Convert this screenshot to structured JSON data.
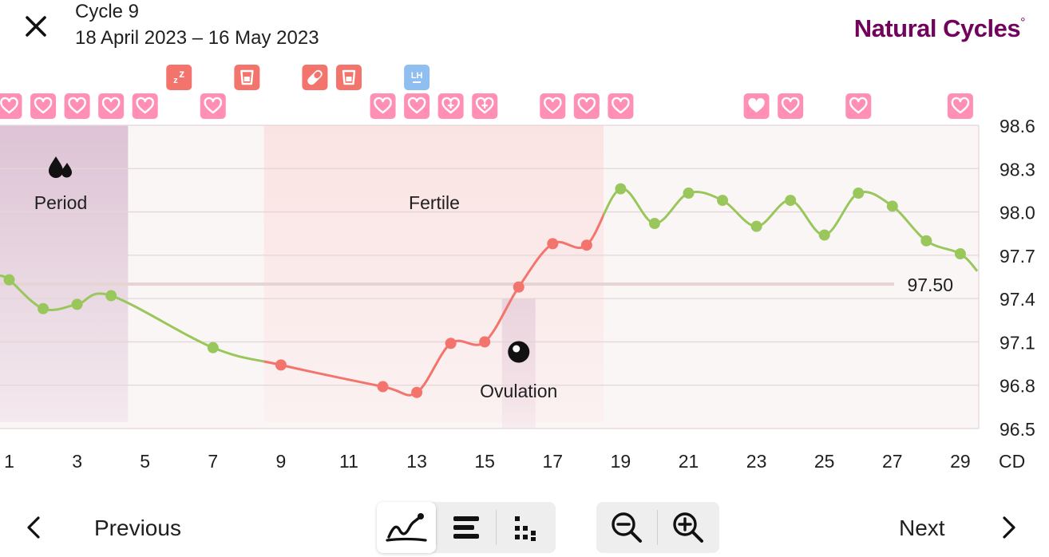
{
  "header": {
    "close_icon": "close-icon",
    "cycle_title": "Cycle 9",
    "cycle_dates": "18 April 2023 – 16 May 2023",
    "brand": "Natural Cycles",
    "brand_mark": "°"
  },
  "chart_data": {
    "type": "line",
    "x": [
      1,
      2,
      3,
      4,
      7,
      9,
      12,
      13,
      14,
      15,
      16,
      17,
      18,
      19,
      20,
      21,
      22,
      23,
      24,
      25,
      26,
      27,
      28,
      29
    ],
    "values": [
      97.53,
      97.33,
      97.36,
      97.42,
      97.06,
      96.94,
      96.79,
      96.75,
      97.09,
      97.1,
      97.48,
      97.78,
      97.77,
      98.16,
      97.92,
      98.13,
      98.08,
      97.9,
      98.08,
      97.84,
      98.13,
      98.04,
      97.8,
      97.71
    ],
    "xlim": [
      0.7,
      29.5
    ],
    "ylim": [
      96.5,
      98.6
    ],
    "yticks": [
      "96.5",
      "96.8",
      "97.1",
      "97.4",
      "97.7",
      "98.0",
      "98.3",
      "98.6"
    ],
    "xticks": [
      "1",
      "3",
      "5",
      "7",
      "9",
      "11",
      "13",
      "15",
      "17",
      "19",
      "21",
      "23",
      "25",
      "27",
      "29"
    ],
    "xlabel": "CD",
    "coverline": {
      "value": 97.5,
      "label": "97.50"
    },
    "grid": true,
    "red_days_range": [
      8.5,
      18.5
    ],
    "colors": {
      "green": "#9ac75c",
      "red": "#f3746c",
      "grid": "#e4d6d8",
      "period_band": "#ddc3d5",
      "fertile_band": "#fbe3e3",
      "ovulation_band": "#ead3de",
      "heart_tag": "#ff8fb5",
      "event_tag": "#f3746c",
      "lh_tag": "#8fbff0"
    },
    "phases": [
      {
        "name": "period",
        "label": "Period",
        "icon": "blood-drops-icon",
        "start": 0.5,
        "end": 4.5
      },
      {
        "name": "fertile",
        "label": "Fertile",
        "start": 8.5,
        "end": 18.5
      },
      {
        "name": "ovulation",
        "label": "Ovulation",
        "icon": "ovulation-egg-icon",
        "day": 16
      }
    ],
    "heart_tags": [
      {
        "day": 1,
        "type": "heart"
      },
      {
        "day": 2,
        "type": "heart"
      },
      {
        "day": 3,
        "type": "heart"
      },
      {
        "day": 4,
        "type": "heart"
      },
      {
        "day": 5,
        "type": "heart"
      },
      {
        "day": 7,
        "type": "heart"
      },
      {
        "day": 12,
        "type": "heart"
      },
      {
        "day": 13,
        "type": "heart"
      },
      {
        "day": 14,
        "type": "heart-plus"
      },
      {
        "day": 15,
        "type": "heart-plus"
      },
      {
        "day": 17,
        "type": "heart"
      },
      {
        "day": 18,
        "type": "heart"
      },
      {
        "day": 19,
        "type": "heart"
      },
      {
        "day": 23,
        "type": "heart-filled"
      },
      {
        "day": 24,
        "type": "heart"
      },
      {
        "day": 26,
        "type": "heart"
      },
      {
        "day": 29,
        "type": "heart"
      }
    ],
    "event_tags": [
      {
        "day": 6,
        "icon": "sleep-icon",
        "text": "zz"
      },
      {
        "day": 8,
        "icon": "alcohol-glass-icon"
      },
      {
        "day": 10,
        "icon": "pill-icon"
      },
      {
        "day": 11,
        "icon": "alcohol-glass-icon"
      },
      {
        "day": 13,
        "icon": "lh-test-icon",
        "text": "LH"
      }
    ]
  },
  "footer": {
    "previous_label": "Previous",
    "next_label": "Next",
    "previous_icon": "chevron-left-icon",
    "next_icon": "chevron-right-icon",
    "view_modes": [
      {
        "icon": "temperature-curve-icon",
        "active": true
      },
      {
        "icon": "bar-list-icon",
        "active": false
      },
      {
        "icon": "dot-grid-icon",
        "active": false
      }
    ],
    "zoom": [
      {
        "icon": "zoom-out-icon"
      },
      {
        "icon": "zoom-in-icon"
      }
    ]
  }
}
